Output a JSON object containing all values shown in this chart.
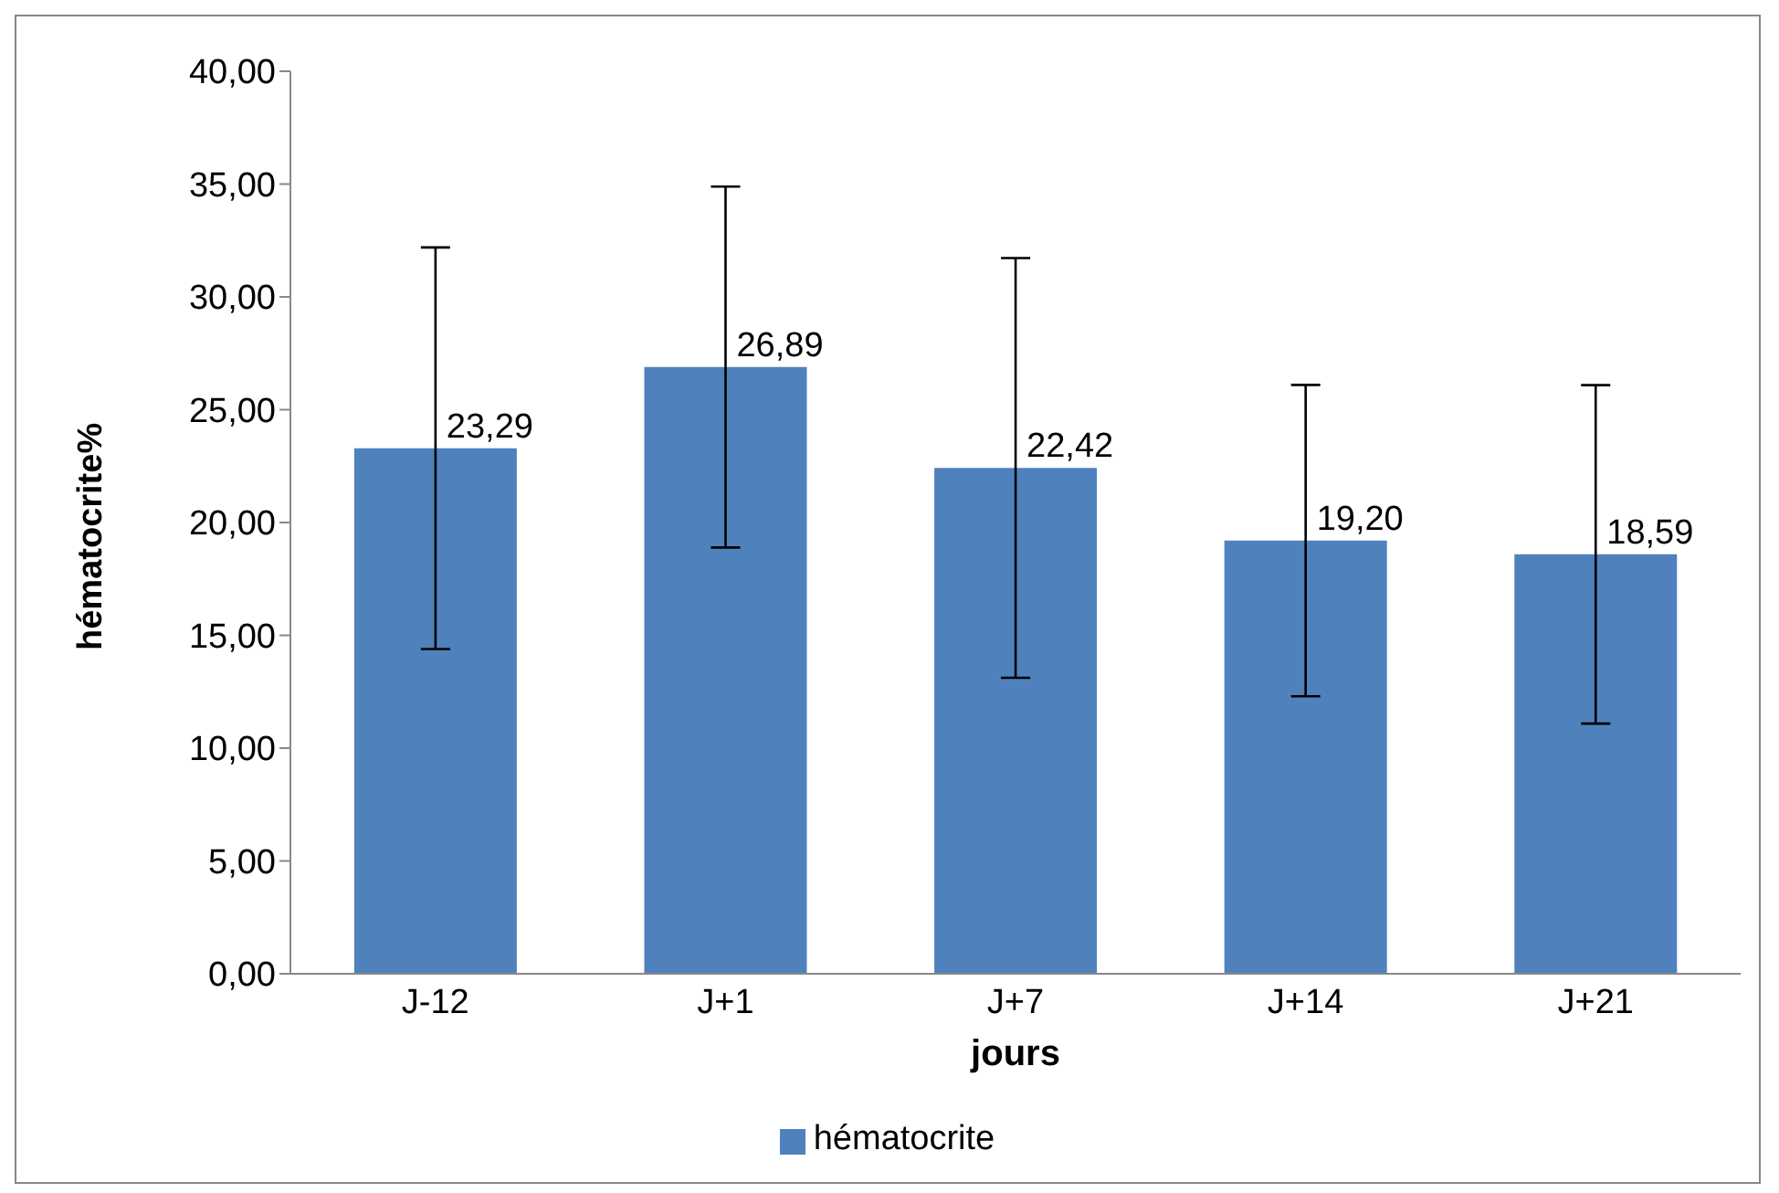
{
  "chart_data": {
    "type": "bar",
    "xlabel": "jours",
    "ylabel": "hématocrite%",
    "categories": [
      "J-12",
      "J+1",
      "J+7",
      "J+14",
      "J+21"
    ],
    "series": [
      {
        "name": "hématocrite",
        "color": "#4f81bd",
        "values": [
          23.29,
          26.89,
          22.42,
          19.2,
          18.59
        ],
        "errors": [
          8.9,
          8.0,
          9.3,
          6.9,
          7.5
        ],
        "value_labels": [
          "23,29",
          "26,89",
          "22,42",
          "19,20",
          "18,59"
        ]
      }
    ],
    "ylim": [
      0,
      40
    ],
    "yticks": [
      {
        "value": 0,
        "label": "0,00"
      },
      {
        "value": 5,
        "label": "5,00"
      },
      {
        "value": 10,
        "label": "10,00"
      },
      {
        "value": 15,
        "label": "15,00"
      },
      {
        "value": 20,
        "label": "20,00"
      },
      {
        "value": 25,
        "label": "25,00"
      },
      {
        "value": 30,
        "label": "30,00"
      },
      {
        "value": 35,
        "label": "35,00"
      },
      {
        "value": 40,
        "label": "40,00"
      }
    ],
    "grid": false,
    "legend": "bottom"
  }
}
